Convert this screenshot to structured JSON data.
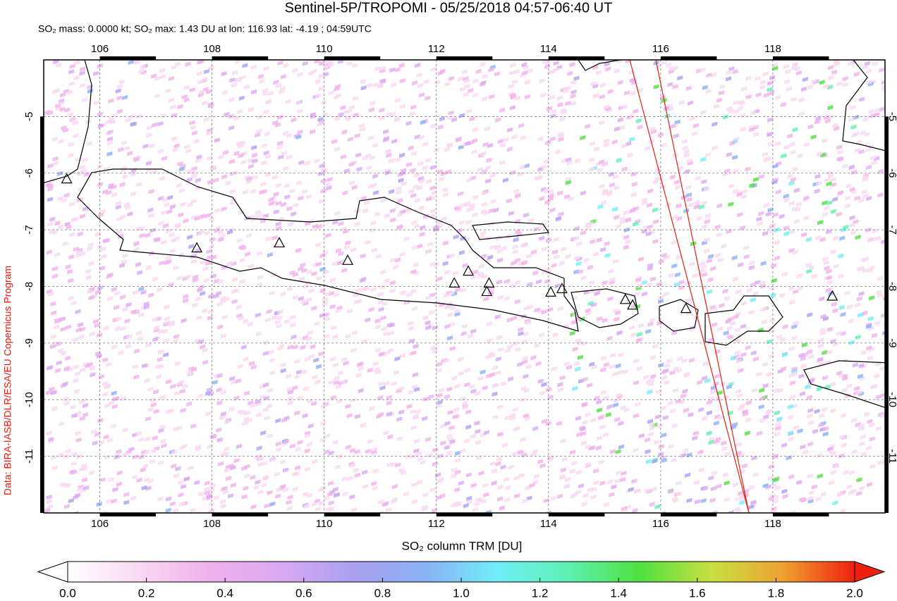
{
  "title": "Sentinel-5P/TROPOMI - 05/25/2018 04:57-06:40 UT",
  "subtitle": "SO₂ mass: 0.0000 kt; SO₂ max: 1.43 DU at lon: 116.93 lat: -4.19 ; 04:59UTC",
  "credit": "Data: BIRA-IASB/DLR/ESA/EU Copernicus Program",
  "map": {
    "xlim": [
      105,
      120
    ],
    "ylim": [
      -12,
      -4
    ],
    "xticks": [
      106,
      108,
      110,
      112,
      114,
      116,
      118
    ],
    "yticks": [
      -5,
      -6,
      -7,
      -8,
      -9,
      -10,
      -11
    ],
    "volcanoes": {
      "lon": [
        105.41,
        107.73,
        109.2,
        110.42,
        112.32,
        112.57,
        112.94,
        112.9,
        114.04,
        114.24,
        115.37,
        115.5,
        116.45,
        119.06
      ],
      "lat": [
        -6.11,
        -7.33,
        -7.24,
        -7.55,
        -7.95,
        -7.74,
        -7.95,
        -8.1,
        -8.11,
        -8.05,
        -8.24,
        -8.34,
        -8.4,
        -8.18
      ]
    }
  },
  "colorbar": {
    "label": "SO₂ column TRM [DU]",
    "lim": [
      0,
      2
    ],
    "ticks": [
      {
        "value": 0,
        "label": "0.0"
      },
      {
        "value": 0.2,
        "label": "0.2"
      },
      {
        "value": 0.4,
        "label": "0.4"
      },
      {
        "value": 0.6,
        "label": "0.6"
      },
      {
        "value": 0.8,
        "label": "0.8"
      },
      {
        "value": 1,
        "label": "1.0"
      },
      {
        "value": 1.2,
        "label": "1.2"
      },
      {
        "value": 1.4,
        "label": "1.4"
      },
      {
        "value": 1.6,
        "label": "1.6"
      },
      {
        "value": 1.8,
        "label": "1.8"
      },
      {
        "value": 2,
        "label": "2.0"
      }
    ],
    "colors": [
      "#ffffff",
      "#f8d8f2",
      "#f0b0ec",
      "#d8a8f2",
      "#a9a0f2",
      "#8ab0f6",
      "#70eef8",
      "#5cf0b0",
      "#50e040",
      "#c8e040",
      "#f0a030",
      "#f02010"
    ]
  }
}
